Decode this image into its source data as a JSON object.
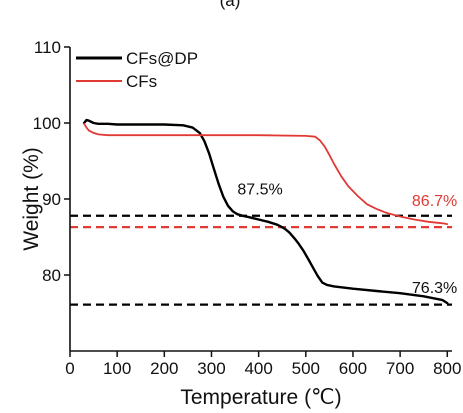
{
  "top_fragment": "(a)",
  "chart_data": {
    "type": "line",
    "title": "",
    "xlabel": "Temperature (℃)",
    "ylabel": "Weight (%)",
    "xlim": [
      0,
      810
    ],
    "ylim": [
      70,
      110
    ],
    "xticks": [
      0,
      100,
      200,
      300,
      400,
      500,
      600,
      700,
      800
    ],
    "yticks": [
      80,
      90,
      100,
      110
    ],
    "grid": false,
    "legend_position": "top-left",
    "series": [
      {
        "name": "CFs@DP",
        "color": "#000000",
        "x": [
          30,
          35,
          40,
          50,
          60,
          80,
          100,
          150,
          200,
          240,
          260,
          275,
          285,
          295,
          305,
          315,
          325,
          335,
          345,
          355,
          365,
          380,
          400,
          420,
          440,
          455,
          465,
          475,
          485,
          495,
          505,
          515,
          525,
          535,
          545,
          560,
          600,
          650,
          700,
          750,
          790,
          800
        ],
        "y": [
          100.0,
          100.4,
          100.3,
          100.0,
          99.9,
          99.9,
          99.8,
          99.8,
          99.8,
          99.7,
          99.4,
          98.7,
          97.6,
          96.0,
          94.0,
          92.0,
          90.3,
          89.1,
          88.4,
          88.0,
          87.8,
          87.6,
          87.3,
          87.0,
          86.6,
          86.1,
          85.6,
          84.9,
          84.1,
          83.2,
          82.1,
          81.0,
          79.9,
          79.0,
          78.7,
          78.5,
          78.2,
          77.9,
          77.6,
          77.2,
          76.7,
          76.3
        ]
      },
      {
        "name": "CFs",
        "color": "#e03a34",
        "x": [
          30,
          35,
          40,
          50,
          60,
          80,
          100,
          150,
          200,
          300,
          400,
          500,
          520,
          530,
          540,
          550,
          560,
          575,
          590,
          610,
          630,
          650,
          670,
          700,
          730,
          760,
          790,
          800
        ],
        "y": [
          99.9,
          99.4,
          99.0,
          98.7,
          98.5,
          98.4,
          98.4,
          98.4,
          98.4,
          98.4,
          98.4,
          98.3,
          98.2,
          97.7,
          96.9,
          95.8,
          94.6,
          93.0,
          91.7,
          90.4,
          89.3,
          88.7,
          88.2,
          87.7,
          87.3,
          87.0,
          86.8,
          86.7
        ]
      }
    ],
    "reference_lines": [
      {
        "y": 87.8,
        "color": "#000000",
        "style": "dashed"
      },
      {
        "y": 76.1,
        "color": "#000000",
        "style": "dashed"
      },
      {
        "y": 86.3,
        "color": "#e03a34",
        "style": "dashed"
      }
    ],
    "annotations": [
      {
        "text": "87.5%",
        "x": 355,
        "y": 90.6,
        "color": "#111111"
      },
      {
        "text": "86.7%",
        "x": 725,
        "y": 89.1,
        "color": "#e03a34"
      },
      {
        "text": "76.3%",
        "x": 725,
        "y": 77.6,
        "color": "#111111"
      }
    ]
  }
}
